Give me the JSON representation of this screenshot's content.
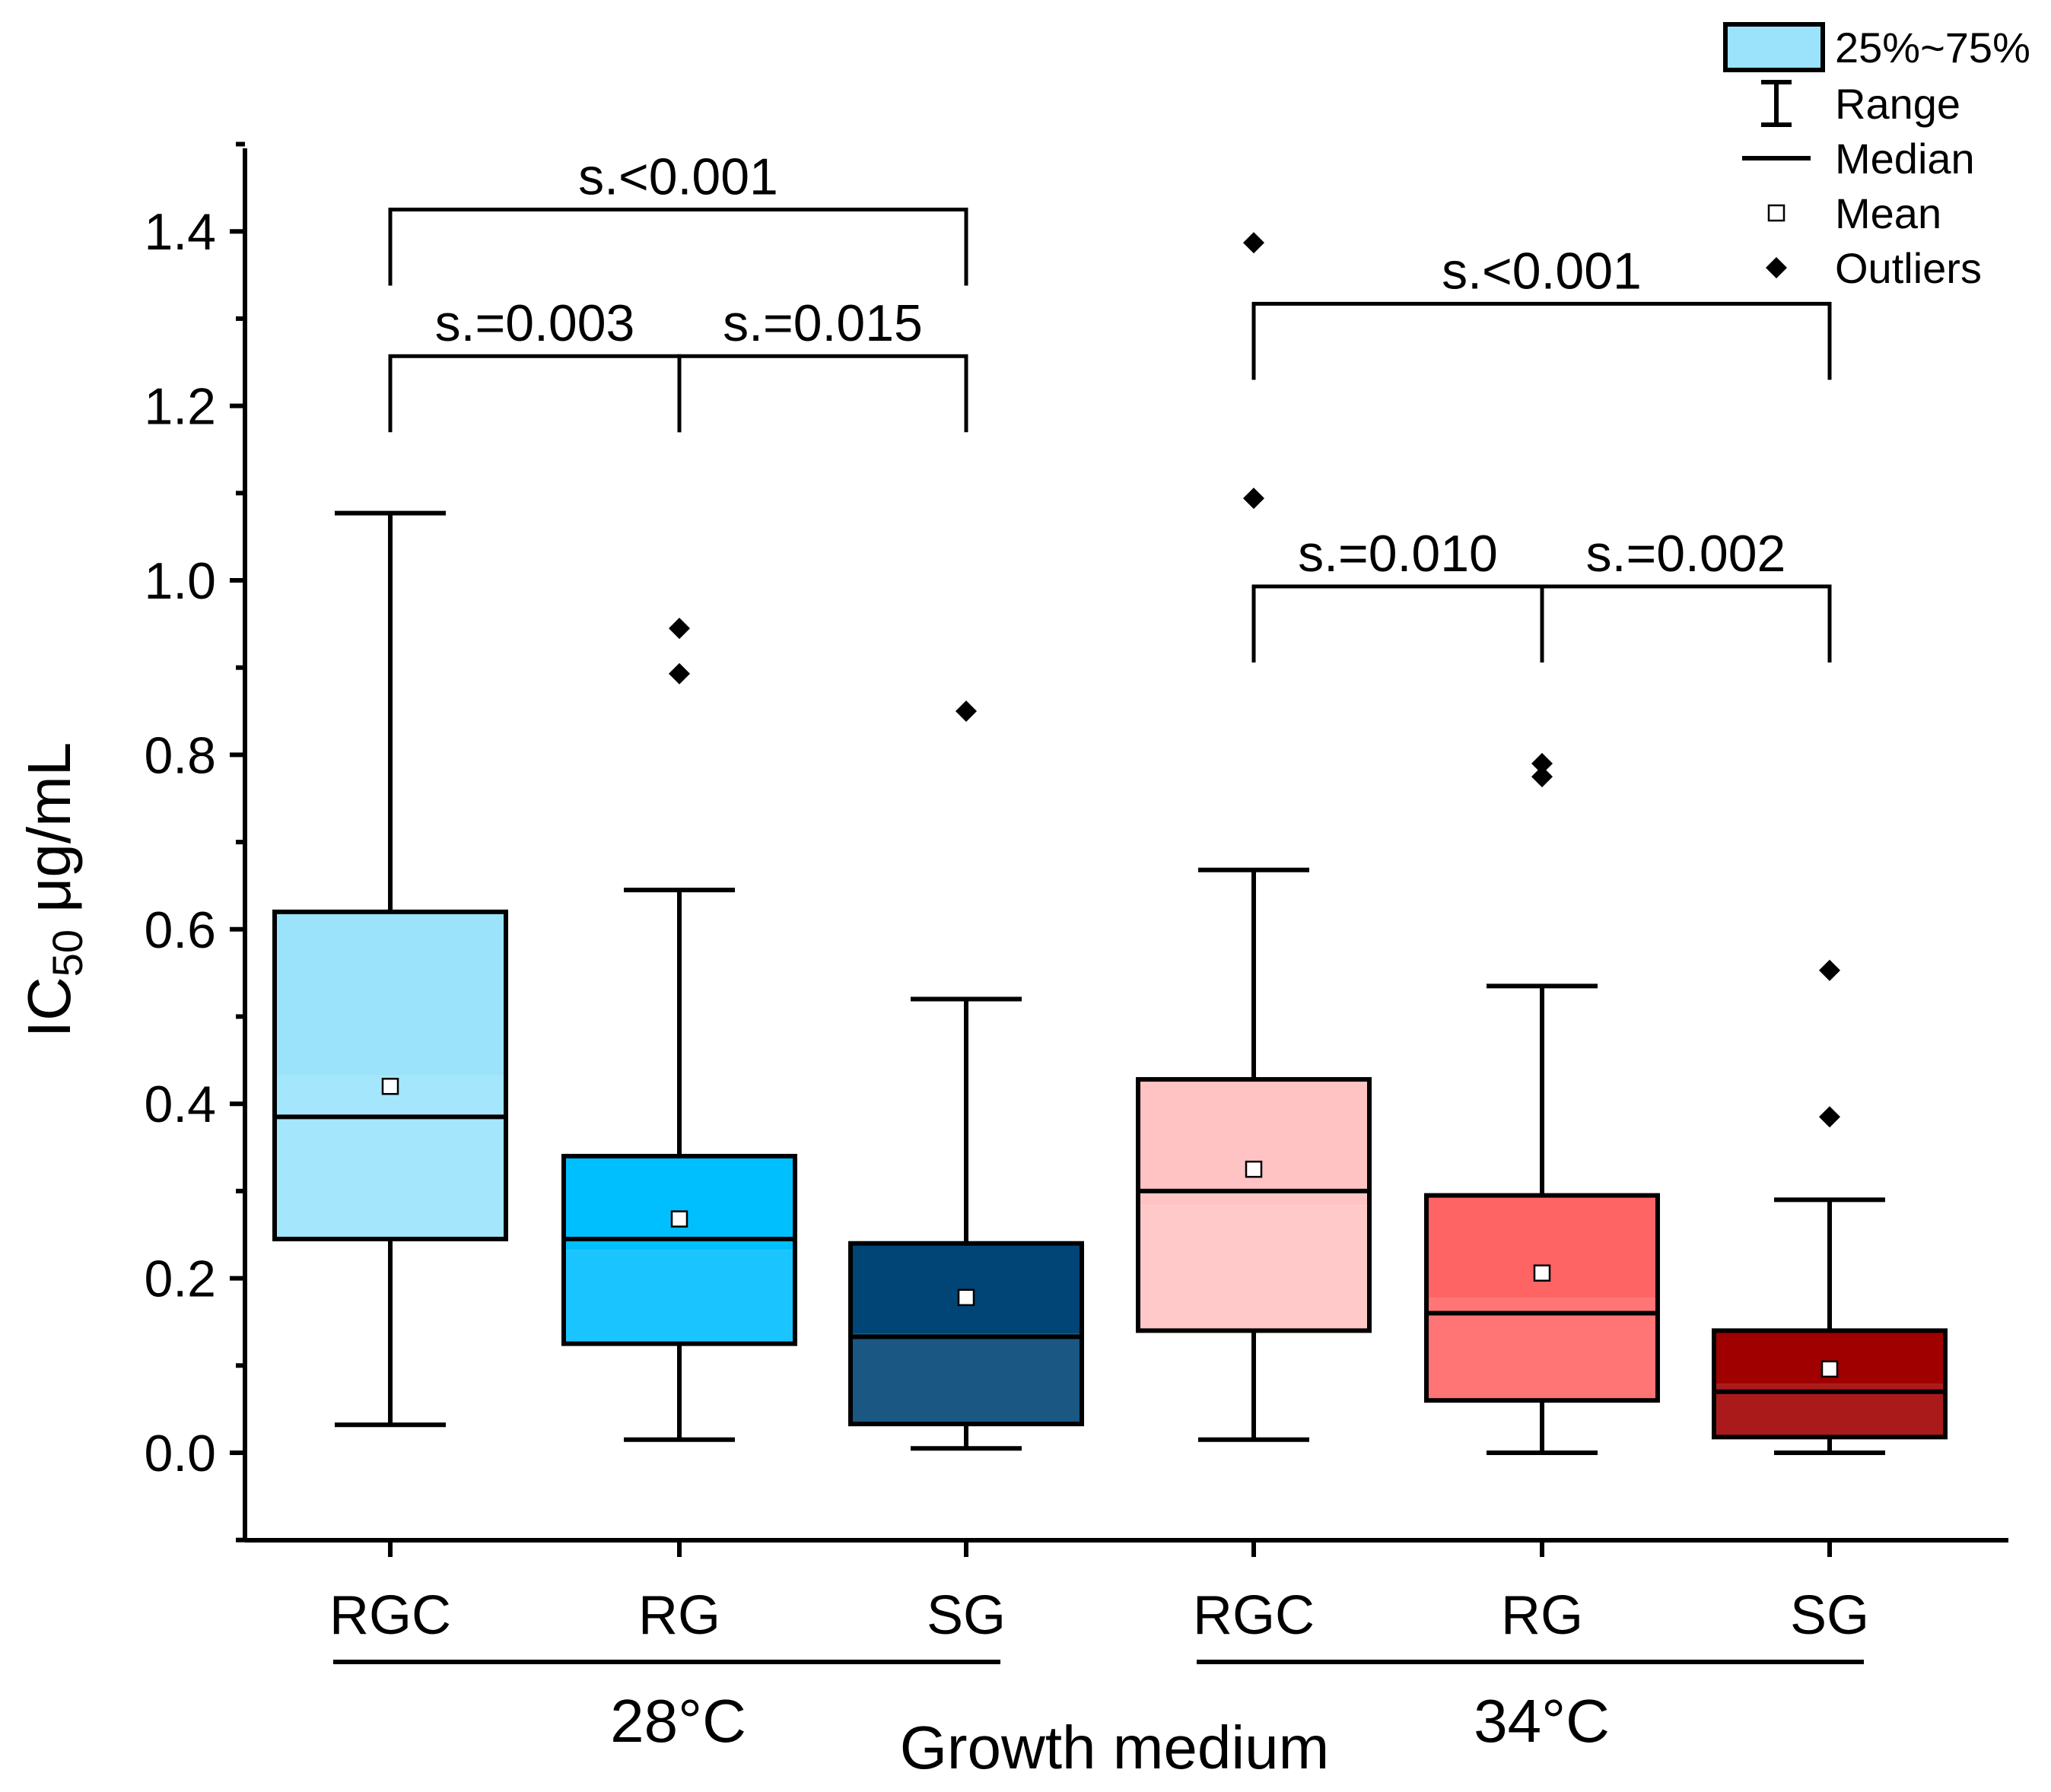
{
  "chart_data": {
    "type": "box",
    "xlabel": "Growth medium",
    "ylabel_main": "IC",
    "ylabel_sub": "50",
    "ylabel_unit": " μg/mL",
    "ylim": [
      -0.1,
      1.5
    ],
    "yticks": [
      0.0,
      0.2,
      0.4,
      0.6,
      0.8,
      1.0,
      1.2,
      1.4
    ],
    "ytick_labels": [
      "0.0",
      "0.2",
      "0.4",
      "0.6",
      "0.8",
      "1.0",
      "1.2",
      "1.4"
    ],
    "groups": [
      {
        "label": "28°C",
        "categories": [
          "RGC",
          "RG",
          "SG"
        ]
      },
      {
        "label": "34°C",
        "categories": [
          "RGC",
          "RG",
          "SG"
        ]
      }
    ],
    "boxes": [
      {
        "name": "RGC-28",
        "category": "RGC",
        "group": "28°C",
        "color": "#9AE3FA",
        "min": 0.032,
        "q1": 0.245,
        "median": 0.385,
        "q3": 0.62,
        "max": 1.077,
        "mean": 0.42,
        "outliers": []
      },
      {
        "name": "RG-28",
        "category": "RG",
        "group": "28°C",
        "color": "#00BFFF",
        "min": 0.015,
        "q1": 0.125,
        "median": 0.245,
        "q3": 0.34,
        "max": 0.645,
        "mean": 0.268,
        "outliers": [
          0.945,
          0.893
        ]
      },
      {
        "name": "SG-28",
        "category": "SG",
        "group": "28°C",
        "color": "#004575",
        "min": 0.005,
        "q1": 0.033,
        "median": 0.133,
        "q3": 0.24,
        "max": 0.52,
        "mean": 0.178,
        "outliers": [
          0.85
        ]
      },
      {
        "name": "RGC-34",
        "category": "RGC",
        "group": "34°C",
        "color": "#FFC3C3",
        "min": 0.015,
        "q1": 0.14,
        "median": 0.3,
        "q3": 0.428,
        "max": 0.668,
        "mean": 0.325,
        "outliers": [
          1.387,
          1.094
        ]
      },
      {
        "name": "RG-34",
        "category": "RG",
        "group": "34°C",
        "color": "#FF6464",
        "min": 0.0,
        "q1": 0.06,
        "median": 0.16,
        "q3": 0.295,
        "max": 0.535,
        "mean": 0.206,
        "outliers": [
          0.79,
          0.775
        ]
      },
      {
        "name": "SG-34",
        "category": "SG",
        "group": "34°C",
        "color": "#A00000",
        "min": 0.0,
        "q1": 0.018,
        "median": 0.07,
        "q3": 0.14,
        "max": 0.29,
        "mean": 0.096,
        "outliers": [
          0.553,
          0.385
        ]
      }
    ],
    "significance": [
      {
        "from": 0,
        "to": 2,
        "label": "s.<0.001",
        "y": 1.425
      },
      {
        "from": 0,
        "to": 1,
        "label": "s.=0.003",
        "y": 1.257
      },
      {
        "from": 1,
        "to": 2,
        "label": "s.=0.015",
        "y": 1.257
      },
      {
        "from": 3,
        "to": 5,
        "label": "s.<0.001",
        "y": 1.317
      },
      {
        "from": 3,
        "to": 4,
        "label": "s.=0.010",
        "y": 0.993
      },
      {
        "from": 4,
        "to": 5,
        "label": "s.=0.002",
        "y": 0.993
      }
    ],
    "legend": {
      "position": "top-right",
      "items": [
        {
          "kind": "box",
          "label": "25%~75%"
        },
        {
          "kind": "range",
          "label": "Range"
        },
        {
          "kind": "median",
          "label": "Median"
        },
        {
          "kind": "mean",
          "label": "Mean"
        },
        {
          "kind": "outliers",
          "label": "Outliers"
        }
      ]
    },
    "legend_box_color": "#9AE3FA"
  }
}
